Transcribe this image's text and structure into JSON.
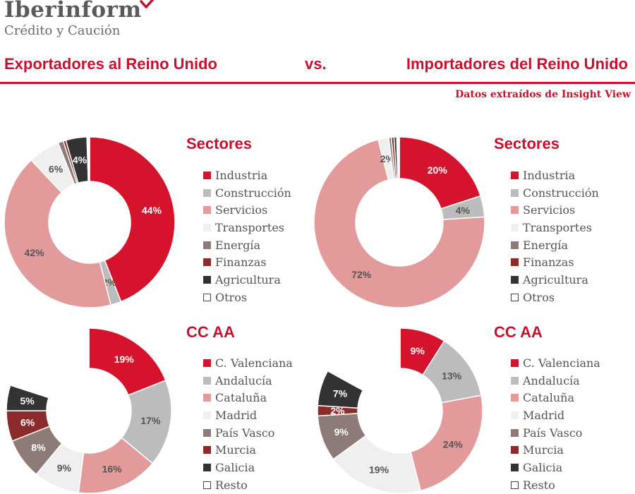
{
  "header": {
    "brand": "Iberinform",
    "subbrand": "Crédito y Caución",
    "title_left": "Exportadores al Reino Unido",
    "vs": "vs.",
    "title_right": "Importadores del Reino Unido",
    "source": "Datos extraídos de Insight View"
  },
  "colors": {
    "brand_red": "#c8102e",
    "logo_gray": "#5a5a5a"
  },
  "chart_data": [
    {
      "type": "pie",
      "variant": "donut",
      "group": "Exportadores al Reino Unido",
      "title": "Sectores",
      "categories": [
        "Industria",
        "Construcción",
        "Servicios",
        "Transportes",
        "Energía",
        "Finanzas",
        "Agricultura",
        "Otros"
      ],
      "values": [
        44,
        2,
        42,
        6,
        1,
        0.5,
        4,
        0.5
      ],
      "labels": [
        "44%",
        "2%",
        "42%",
        "6%",
        "",
        "",
        "4%",
        ""
      ],
      "colors": [
        "#d6132c",
        "#bcbcbc",
        "#e39a9b",
        "#efefef",
        "#8c7b77",
        "#8b2b2c",
        "#333333",
        "#ffffff"
      ]
    },
    {
      "type": "pie",
      "variant": "donut",
      "group": "Importadores del Reino Unido",
      "title": "Sectores",
      "categories": [
        "Industria",
        "Construcción",
        "Servicios",
        "Transportes",
        "Energía",
        "Finanzas",
        "Agricultura",
        "Otros"
      ],
      "values": [
        20,
        4,
        72,
        2,
        0.5,
        0.5,
        0.5,
        0.5
      ],
      "labels": [
        "20%",
        "4%",
        "72%",
        "2%",
        "",
        "",
        "",
        ""
      ],
      "colors": [
        "#d6132c",
        "#bcbcbc",
        "#e39a9b",
        "#efefef",
        "#8c7b77",
        "#8b2b2c",
        "#333333",
        "#ffffff"
      ]
    },
    {
      "type": "pie",
      "variant": "donut",
      "group": "Exportadores al Reino Unido",
      "title": "CC AA",
      "categories": [
        "C. Valenciana",
        "Andalucía",
        "Cataluña",
        "Madrid",
        "País Vasco",
        "Murcia",
        "Galicia",
        "Resto"
      ],
      "values": [
        19,
        17,
        16,
        9,
        8,
        6,
        5,
        20
      ],
      "labels": [
        "19%",
        "17%",
        "16%",
        "9%",
        "8%",
        "6%",
        "5%",
        ""
      ],
      "colors": [
        "#d6132c",
        "#bcbcbc",
        "#e39a9b",
        "#efefef",
        "#8c7b77",
        "#8b2b2c",
        "#333333",
        "#ffffff"
      ]
    },
    {
      "type": "pie",
      "variant": "donut",
      "group": "Importadores del Reino Unido",
      "title": "CC AA",
      "categories": [
        "C. Valenciana",
        "Andalucía",
        "Cataluña",
        "Madrid",
        "País Vasco",
        "Murcia",
        "Galicia",
        "Resto"
      ],
      "values": [
        9,
        13,
        24,
        19,
        9,
        2,
        7,
        17
      ],
      "labels": [
        "9%",
        "13%",
        "24%",
        "19%",
        "9%",
        "2%",
        "7%",
        ""
      ],
      "colors": [
        "#d6132c",
        "#bcbcbc",
        "#e39a9b",
        "#efefef",
        "#8c7b77",
        "#8b2b2c",
        "#333333",
        "#ffffff"
      ]
    }
  ]
}
